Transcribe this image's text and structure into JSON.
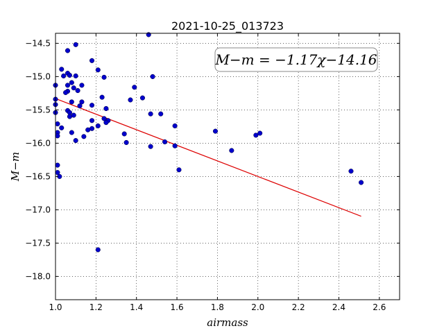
{
  "chart_data": {
    "type": "scatter",
    "title": "2021-10-25_013723",
    "xlabel": "airmass",
    "ylabel": "M−m",
    "xlim": [
      1.0,
      2.7
    ],
    "ylim": [
      -18.35,
      -14.35
    ],
    "y_inverted": true,
    "x_ticks": [
      1.0,
      1.2,
      1.4,
      1.6,
      1.8,
      2.0,
      2.2,
      2.4,
      2.6
    ],
    "x_tick_labels": [
      "1.0",
      "1.2",
      "1.4",
      "1.6",
      "1.8",
      "2.0",
      "2.2",
      "2.4",
      "2.6"
    ],
    "y_ticks": [
      -14.5,
      -15.0,
      -15.5,
      -16.0,
      -16.5,
      -17.0,
      -17.5,
      -18.0
    ],
    "y_tick_labels": [
      "−14.5",
      "−15.0",
      "−15.5",
      "−16.0",
      "−16.5",
      "−17.0",
      "−17.5",
      "−18.0"
    ],
    "grid": true,
    "annotation": "M−m = −1.17χ−14.16",
    "point_color": "#0000cc",
    "fit_color": "#dd0000",
    "fit": {
      "slope": -1.17,
      "intercept": -14.16,
      "x_range": [
        1.0,
        2.51
      ]
    },
    "points": [
      [
        1.46,
        -14.37
      ],
      [
        1.06,
        -14.61
      ],
      [
        1.1,
        -14.52
      ],
      [
        1.03,
        -14.89
      ],
      [
        1.04,
        -14.99
      ],
      [
        1.06,
        -14.95
      ],
      [
        1.07,
        -14.98
      ],
      [
        1.1,
        -14.99
      ],
      [
        1.24,
        -15.01
      ],
      [
        1.18,
        -14.76
      ],
      [
        1.21,
        -14.9
      ],
      [
        1.48,
        -15.0
      ],
      [
        1.0,
        -15.13
      ],
      [
        1.06,
        -15.13
      ],
      [
        1.08,
        -15.09
      ],
      [
        1.13,
        -15.13
      ],
      [
        1.09,
        -15.17
      ],
      [
        1.11,
        -15.21
      ],
      [
        1.06,
        -15.22
      ],
      [
        1.05,
        -15.24
      ],
      [
        1.39,
        -15.16
      ],
      [
        1.23,
        -15.31
      ],
      [
        1.43,
        -15.32
      ],
      [
        1.37,
        -15.35
      ],
      [
        1.0,
        -15.34
      ],
      [
        1.0,
        -15.42
      ],
      [
        1.08,
        -15.38
      ],
      [
        1.13,
        -15.38
      ],
      [
        1.12,
        -15.44
      ],
      [
        1.18,
        -15.43
      ],
      [
        1.06,
        -15.51
      ],
      [
        1.07,
        -15.54
      ],
      [
        1.25,
        -15.48
      ],
      [
        1.07,
        -15.6
      ],
      [
        1.09,
        -15.58
      ],
      [
        1.0,
        -15.54
      ],
      [
        1.47,
        -15.56
      ],
      [
        1.52,
        -15.56
      ],
      [
        1.24,
        -15.63
      ],
      [
        1.26,
        -15.66
      ],
      [
        1.25,
        -15.69
      ],
      [
        1.21,
        -15.74
      ],
      [
        1.18,
        -15.66
      ],
      [
        1.18,
        -15.78
      ],
      [
        1.16,
        -15.8
      ],
      [
        1.01,
        -15.71
      ],
      [
        1.03,
        -15.77
      ],
      [
        1.01,
        -15.84
      ],
      [
        1.01,
        -15.89
      ],
      [
        1.08,
        -15.84
      ],
      [
        1.14,
        -15.9
      ],
      [
        1.1,
        -15.96
      ],
      [
        1.34,
        -15.86
      ],
      [
        1.35,
        -15.99
      ],
      [
        1.47,
        -16.05
      ],
      [
        1.54,
        -15.98
      ],
      [
        1.59,
        -15.74
      ],
      [
        1.59,
        -16.04
      ],
      [
        1.79,
        -15.82
      ],
      [
        1.87,
        -16.11
      ],
      [
        1.99,
        -15.88
      ],
      [
        2.01,
        -15.85
      ],
      [
        1.01,
        -16.33
      ],
      [
        1.01,
        -16.44
      ],
      [
        1.02,
        -16.5
      ],
      [
        1.61,
        -16.4
      ],
      [
        2.46,
        -16.42
      ],
      [
        2.51,
        -16.59
      ],
      [
        1.21,
        -17.6
      ]
    ]
  }
}
